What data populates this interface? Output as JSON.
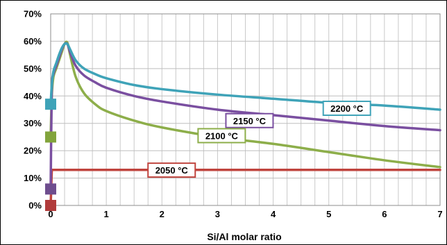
{
  "chart_data": {
    "type": "line",
    "xlabel": "Si/Al molar ratio",
    "ylabel": "",
    "xlim": [
      0,
      7
    ],
    "ylim": [
      0,
      70
    ],
    "x_ticks": [
      "0",
      "1",
      "2",
      "3",
      "4",
      "5",
      "6",
      "7"
    ],
    "y_ticks": [
      "0%",
      "10%",
      "20%",
      "30%",
      "40%",
      "50%",
      "60%",
      "70%"
    ],
    "minor_x_step": 0.25,
    "grid": true,
    "legend": "none",
    "series": [
      {
        "name": "2200 °C",
        "color": "#3fa3b8",
        "marker_color": "#3fa3b8",
        "x": [
          0,
          0.02,
          0.05,
          0.1,
          0.15,
          0.2,
          0.25,
          0.3,
          0.35,
          0.45,
          0.6,
          0.8,
          1.0,
          1.5,
          2,
          3,
          4,
          5,
          6,
          7
        ],
        "values": [
          37,
          44,
          49,
          52,
          55,
          57.5,
          59,
          59,
          57,
          53,
          50,
          48,
          46.5,
          44,
          42.5,
          40.5,
          39,
          37.5,
          36.5,
          35
        ]
      },
      {
        "name": "2150 °C",
        "color": "#7a4fa0",
        "marker_color": "#6e4d8e",
        "x": [
          0,
          0.02,
          0.05,
          0.1,
          0.15,
          0.2,
          0.25,
          0.3,
          0.35,
          0.45,
          0.6,
          0.8,
          1.0,
          1.5,
          2,
          3,
          4,
          5,
          6,
          7
        ],
        "values": [
          6,
          42,
          48,
          51,
          54,
          57,
          59,
          59,
          56,
          51,
          47.5,
          45,
          43,
          40,
          38,
          35,
          33,
          31,
          29,
          27.5
        ]
      },
      {
        "name": "2100 °C",
        "color": "#8dae4a",
        "marker_color": "#82a43c",
        "x": [
          0,
          0.02,
          0.05,
          0.1,
          0.15,
          0.2,
          0.25,
          0.3,
          0.35,
          0.45,
          0.6,
          0.8,
          1.0,
          1.5,
          2,
          3,
          4,
          5,
          6,
          7
        ],
        "values": [
          25,
          40,
          47,
          50,
          53,
          56,
          59,
          59.5,
          55,
          47,
          41,
          37,
          34.5,
          31,
          28.5,
          25,
          22.5,
          19.5,
          16.5,
          14
        ]
      },
      {
        "name": "2050 °C",
        "color": "#c0443e",
        "marker_color": "#b13b3b",
        "x": [
          0,
          0.02,
          0.05,
          0.1,
          0.2,
          0.4,
          1,
          2,
          3,
          4,
          5,
          6,
          7
        ],
        "values": [
          0,
          13,
          13,
          13,
          13,
          13,
          13,
          13,
          13,
          13,
          13,
          13,
          13
        ]
      }
    ],
    "curve_labels": [
      {
        "text": "2200 °C",
        "series": "2200 °C",
        "border": "#3fa3b8"
      },
      {
        "text": "2150 °C",
        "series": "2150 °C",
        "border": "#7a4fa0"
      },
      {
        "text": "2100 °C",
        "series": "2100 °C",
        "border": "#8dae4a"
      },
      {
        "text": "2050 °C",
        "series": "2050 °C",
        "border": "#c0443e"
      }
    ]
  }
}
